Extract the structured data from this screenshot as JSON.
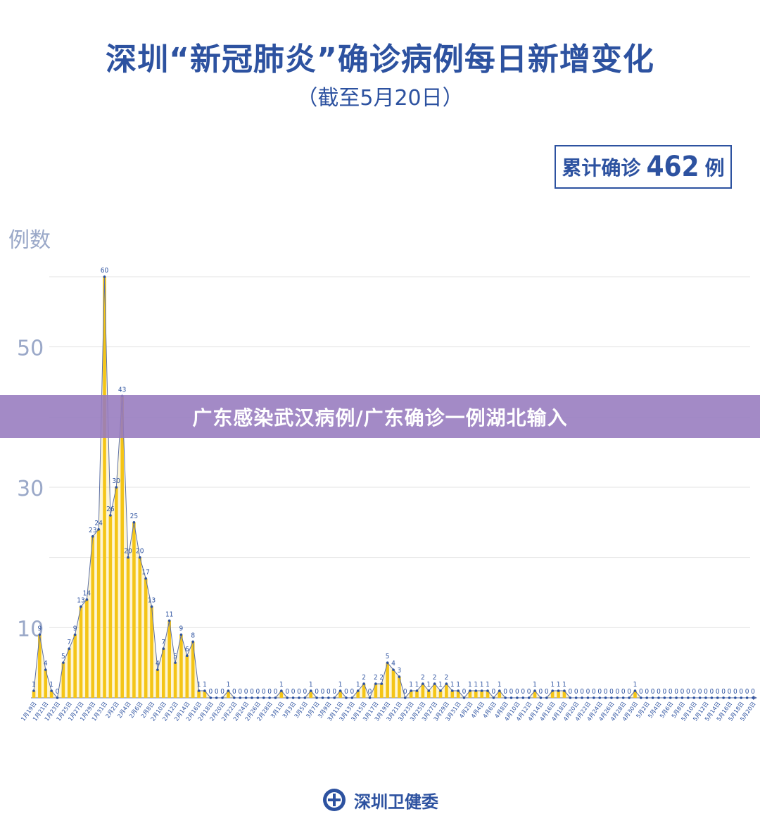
{
  "header": {
    "title": "深圳“新冠肺炎”确诊病例每日新增变化",
    "subtitle": "（截至5月20日）"
  },
  "summary": {
    "label": "累计确诊",
    "total": "462",
    "unit": "例"
  },
  "banner": {
    "text": "广东感染武汉病例/广东确诊一例湖北输入"
  },
  "footer": {
    "org": "深圳卫健委",
    "logo_icon": "shenzhen-health-commission-emblem"
  },
  "colors": {
    "accent": "#2d52a0",
    "bar": "#f5c518",
    "line": "#5b6fa6",
    "axis_text": "#9aa8c8",
    "grid": "#e3e3e3",
    "banner": "#967abe"
  },
  "chart_data": {
    "type": "bar",
    "ylabel": "例数",
    "ylim": [
      0,
      60
    ],
    "yticks": [
      10,
      30,
      50
    ],
    "grid": true,
    "categories": [
      "1月19日",
      "1月20日",
      "1月21日",
      "1月22日",
      "1月23日",
      "1月24日",
      "1月25日",
      "1月26日",
      "1月27日",
      "1月28日",
      "1月29日",
      "1月30日",
      "1月31日",
      "2月1日",
      "2月2日",
      "2月3日",
      "2月4日",
      "2月5日",
      "2月6日",
      "2月7日",
      "2月8日",
      "2月9日",
      "2月10日",
      "2月11日",
      "2月12日",
      "2月13日",
      "2月14日",
      "2月15日",
      "2月16日",
      "2月17日",
      "2月18日",
      "2月19日",
      "2月20日",
      "2月21日",
      "2月22日",
      "2月23日",
      "2月24日",
      "2月25日",
      "2月26日",
      "2月27日",
      "2月28日",
      "2月29日",
      "3月1日",
      "3月2日",
      "3月3日",
      "3月4日",
      "3月5日",
      "3月6日",
      "3月7日",
      "3月8日",
      "3月9日",
      "3月10日",
      "3月11日",
      "3月12日",
      "3月13日",
      "3月14日",
      "3月15日",
      "3月16日",
      "3月17日",
      "3月18日",
      "3月19日",
      "3月20日",
      "3月21日",
      "3月22日",
      "3月23日",
      "3月24日",
      "3月25日",
      "3月26日",
      "3月27日",
      "3月28日",
      "3月29日",
      "3月30日",
      "3月31日",
      "4月1日",
      "4月2日",
      "4月3日",
      "4月4日",
      "4月5日",
      "4月6日",
      "4月7日",
      "4月8日",
      "4月9日",
      "4月10日",
      "4月11日",
      "4月12日",
      "4月13日",
      "4月14日",
      "4月15日",
      "4月16日",
      "4月17日",
      "4月18日",
      "4月19日",
      "4月20日",
      "4月21日",
      "4月22日",
      "4月23日",
      "4月24日",
      "4月25日",
      "4月26日",
      "4月27日",
      "4月28日",
      "4月29日",
      "4月30日",
      "5月1日",
      "5月2日",
      "5月3日",
      "5月4日",
      "5月5日",
      "5月6日",
      "5月7日",
      "5月8日",
      "5月9日",
      "5月10日",
      "5月11日",
      "5月12日",
      "5月13日",
      "5月14日",
      "5月15日",
      "5月16日",
      "5月17日",
      "5月18日",
      "5月19日",
      "5月20日"
    ],
    "tick_labels": [
      "1月19日",
      "1月21日",
      "1月23日",
      "1月25日",
      "1月27日",
      "1月29日",
      "1月31日",
      "2月2日",
      "2月4日",
      "2月6日",
      "2月8日",
      "2月10日",
      "2月12日",
      "2月14日",
      "2月16日",
      "2月18日",
      "2月20日",
      "2月22日",
      "2月24日",
      "2月26日",
      "2月28日",
      "3月1日",
      "3月3日",
      "3月5日",
      "3月7日",
      "3月9日",
      "3月11日",
      "3月13日",
      "3月15日",
      "3月17日",
      "3月19日",
      "3月21日",
      "3月23日",
      "3月25日",
      "3月27日",
      "3月29日",
      "3月31日",
      "4月2日",
      "4月4日",
      "4月6日",
      "4月8日",
      "4月10日",
      "4月12日",
      "4月14日",
      "4月16日",
      "4月18日",
      "4月20日",
      "4月22日",
      "4月24日",
      "4月26日",
      "4月28日",
      "4月30日",
      "5月2日",
      "5月4日",
      "5月6日",
      "5月8日",
      "5月10日",
      "5月12日",
      "5月14日",
      "5月16日",
      "5月18日",
      "5月20日"
    ],
    "values": [
      1,
      9,
      4,
      1,
      0,
      5,
      7,
      9,
      13,
      14,
      23,
      24,
      60,
      26,
      30,
      43,
      20,
      25,
      20,
      17,
      13,
      4,
      7,
      11,
      5,
      9,
      6,
      8,
      1,
      1,
      0,
      0,
      0,
      1,
      0,
      0,
      0,
      0,
      0,
      0,
      0,
      0,
      1,
      0,
      0,
      0,
      0,
      1,
      0,
      0,
      0,
      0,
      1,
      0,
      0,
      1,
      2,
      0,
      2,
      2,
      5,
      4,
      3,
      0,
      1,
      1,
      2,
      1,
      2,
      1,
      2,
      1,
      1,
      0,
      1,
      1,
      1,
      1,
      0,
      1,
      0,
      0,
      0,
      0,
      0,
      1,
      0,
      0,
      1,
      1,
      1,
      0,
      0,
      0,
      0,
      0,
      0,
      0,
      0,
      0,
      0,
      0,
      1,
      0,
      0,
      0,
      0,
      0,
      0,
      0,
      0,
      0,
      0,
      0,
      0,
      0,
      0,
      0,
      0,
      0,
      0,
      0,
      0
    ]
  }
}
